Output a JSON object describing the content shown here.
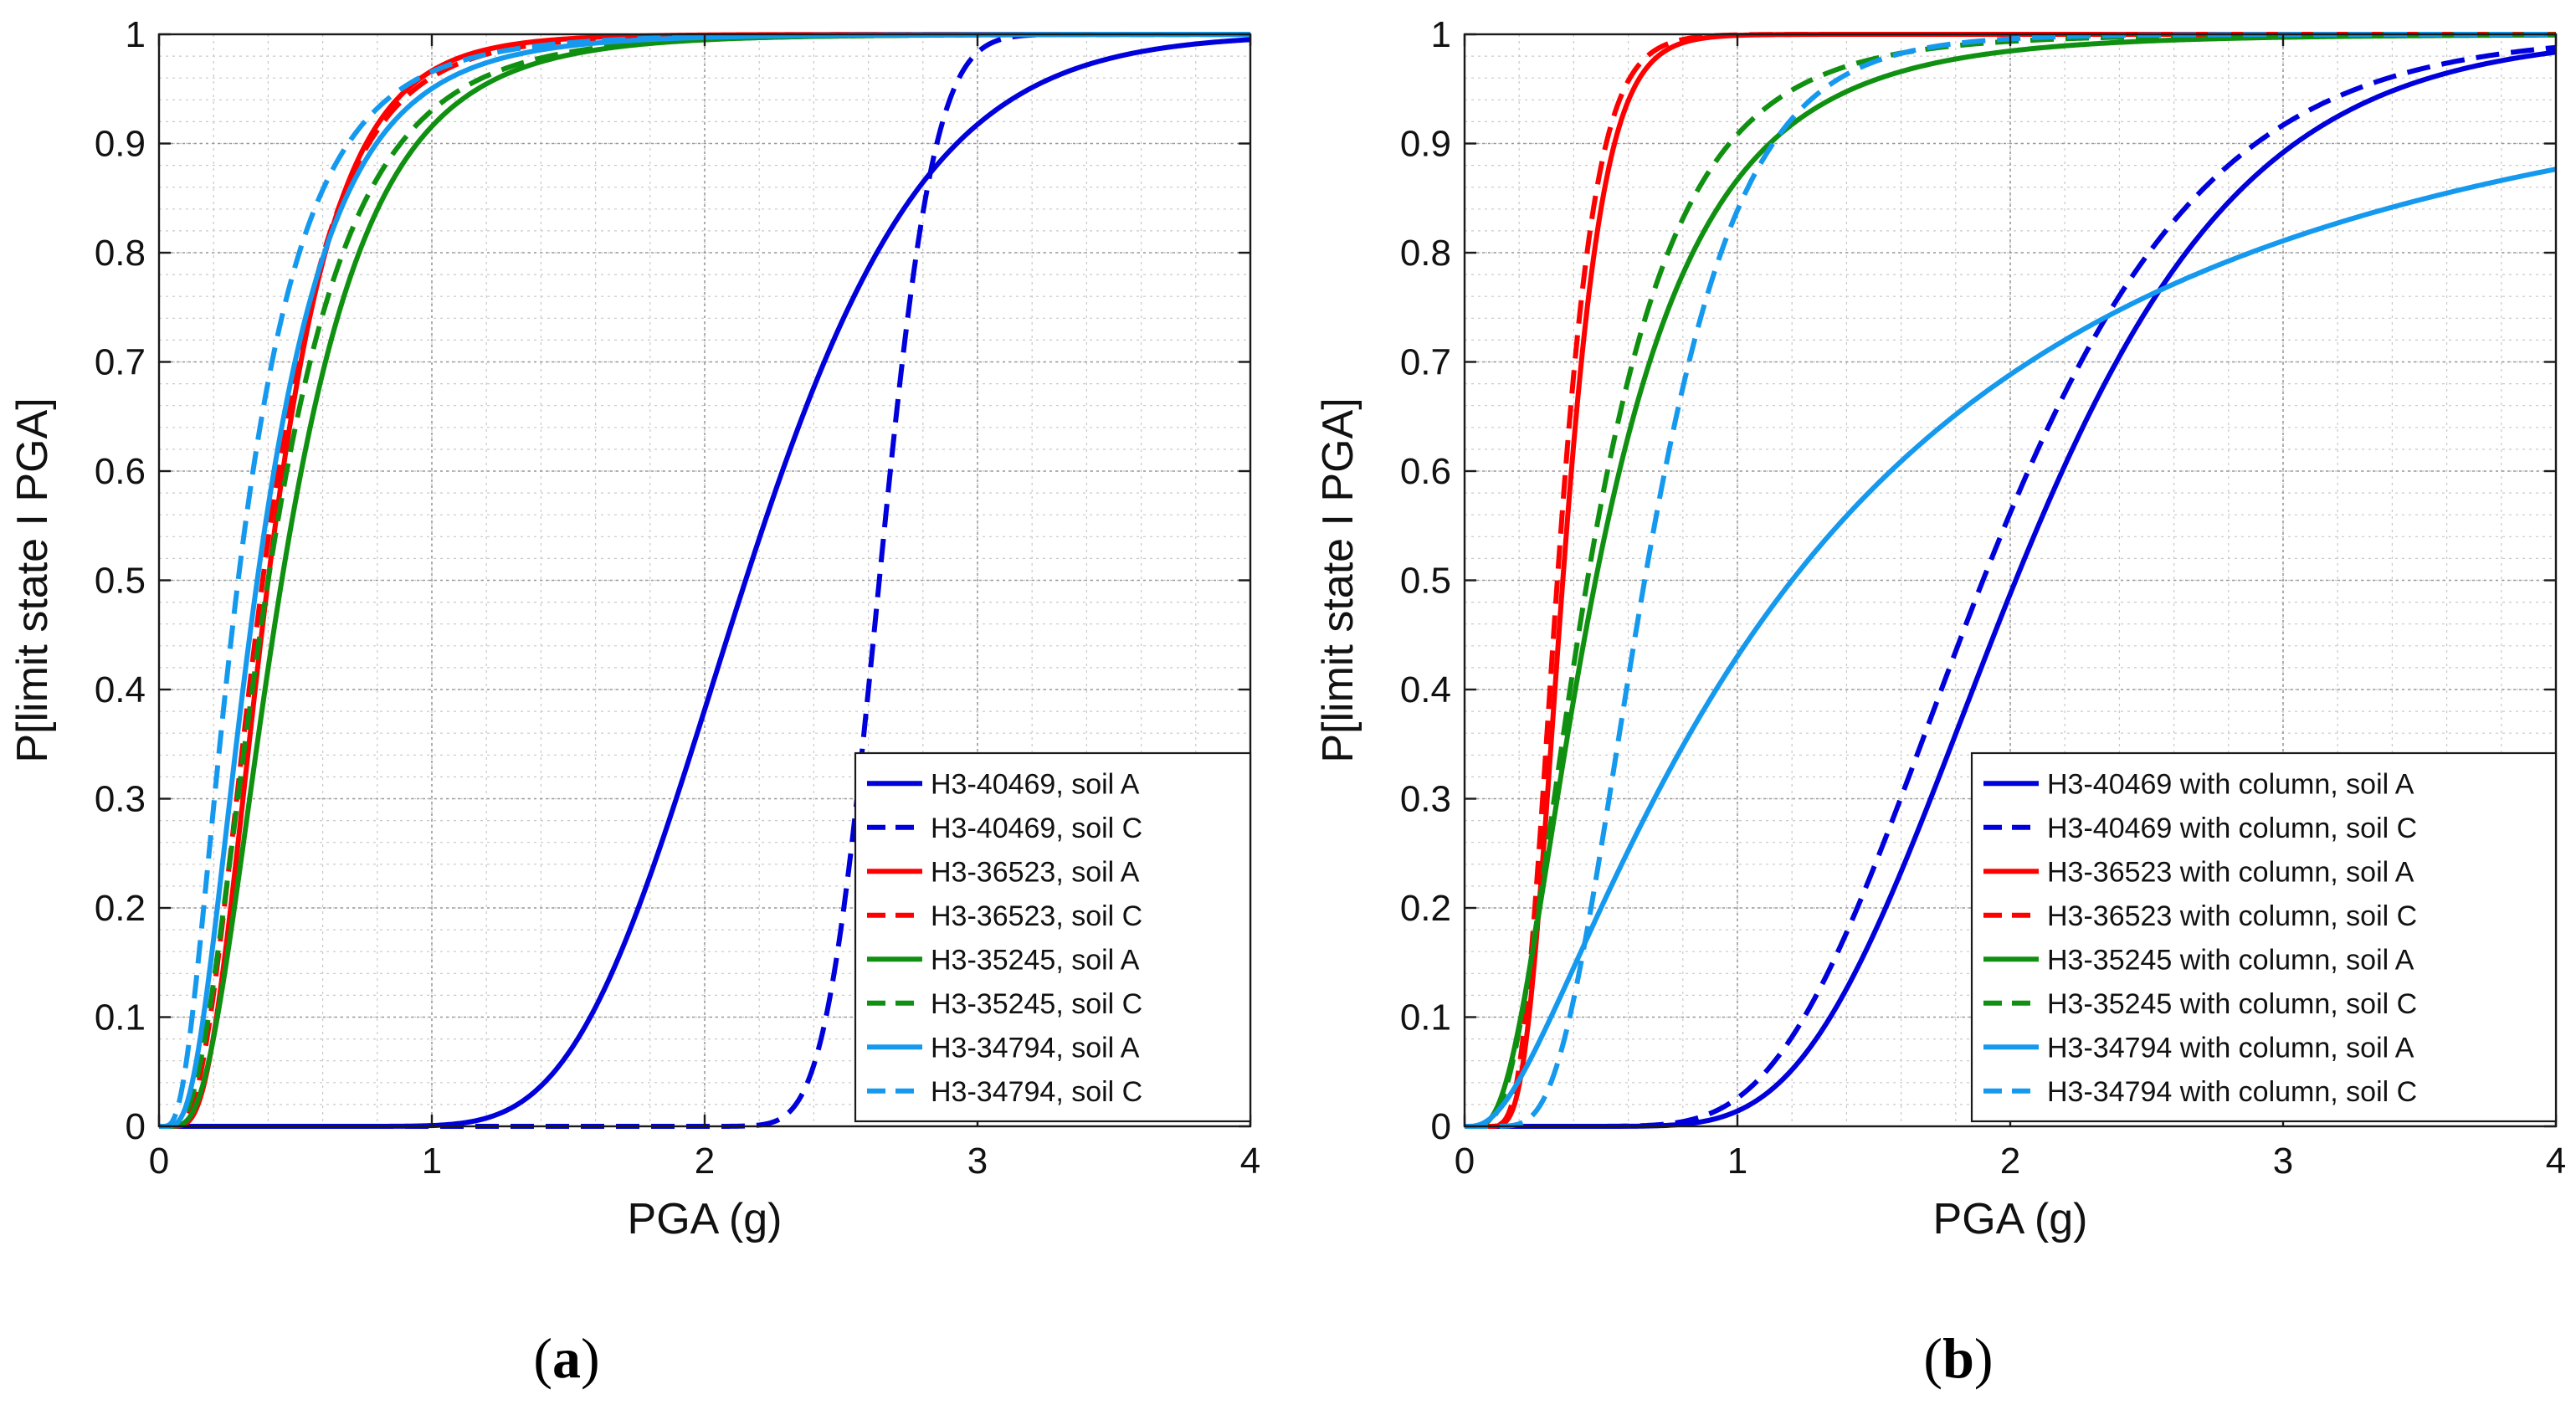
{
  "chart_data": [
    {
      "type": "line",
      "panel": "a",
      "caption_prefix": "(",
      "caption_letter": "a",
      "caption_suffix": ")",
      "xlabel": "PGA (g)",
      "ylabel": "P[limit state I PGA]",
      "xlim": [
        0,
        4
      ],
      "ylim": [
        0,
        1
      ],
      "xticks": [
        0,
        1,
        2,
        3,
        4
      ],
      "yticks": [
        0,
        0.1,
        0.2,
        0.3,
        0.4,
        0.5,
        0.6,
        0.7,
        0.8,
        0.9,
        1
      ],
      "grid": "major-and-minor",
      "legend_position": "bottom-right",
      "series": [
        {
          "name": "H3-40469, soil A",
          "color": "#0000dd",
          "dash": "solid",
          "median": 2.15,
          "beta": 0.24
        },
        {
          "name": "H3-40469, soil C",
          "color": "#0000dd",
          "dash": "dashed",
          "median": 2.64,
          "beta": 0.06
        },
        {
          "name": "H3-36523, soil A",
          "color": "#ff0000",
          "dash": "solid",
          "median": 0.4,
          "beta": 0.5
        },
        {
          "name": "H3-36523, soil C",
          "color": "#ff0000",
          "dash": "dashed",
          "median": 0.38,
          "beta": 0.55
        },
        {
          "name": "H3-35245, soil A",
          "color": "#109010",
          "dash": "solid",
          "median": 0.45,
          "beta": 0.58
        },
        {
          "name": "H3-35245, soil C",
          "color": "#109010",
          "dash": "dashed",
          "median": 0.4,
          "beta": 0.62
        },
        {
          "name": "H3-34794, soil A",
          "color": "#1599ee",
          "dash": "solid",
          "median": 0.36,
          "beta": 0.62
        },
        {
          "name": "H3-34794, soil C",
          "color": "#1599ee",
          "dash": "dashed",
          "median": 0.29,
          "beta": 0.68
        }
      ]
    },
    {
      "type": "line",
      "panel": "b",
      "caption_prefix": "(",
      "caption_letter": "b",
      "caption_suffix": ")",
      "xlabel": "PGA (g)",
      "ylabel": "P[limit state I PGA]",
      "xlim": [
        0,
        4
      ],
      "ylim": [
        0,
        1
      ],
      "xticks": [
        0,
        1,
        2,
        3,
        4
      ],
      "yticks": [
        0,
        0.1,
        0.2,
        0.3,
        0.4,
        0.5,
        0.6,
        0.7,
        0.8,
        0.9,
        1
      ],
      "grid": "major-and-minor",
      "legend_position": "bottom-right",
      "series": [
        {
          "name": "H3-40469 with column, soil A",
          "color": "#0000dd",
          "dash": "solid",
          "median": 2.02,
          "beta": 0.32
        },
        {
          "name": "H3-40469 with column, soil C",
          "color": "#0000dd",
          "dash": "dashed",
          "median": 1.9,
          "beta": 0.33
        },
        {
          "name": "H3-36523 with column, soil A",
          "color": "#ff0000",
          "dash": "solid",
          "median": 0.36,
          "beta": 0.33
        },
        {
          "name": "H3-36523 with column, soil C",
          "color": "#ff0000",
          "dash": "dashed",
          "median": 0.34,
          "beta": 0.33
        },
        {
          "name": "H3-35245 with column, soil A",
          "color": "#109010",
          "dash": "solid",
          "median": 0.48,
          "beta": 0.66
        },
        {
          "name": "H3-35245 with column, soil C",
          "color": "#109010",
          "dash": "dashed",
          "median": 0.45,
          "beta": 0.6
        },
        {
          "name": "H3-34794 with column, soil A",
          "color": "#1599ee",
          "dash": "solid",
          "median": 1.2,
          "beta": 1.04
        },
        {
          "name": "H3-34794 with column, soil C",
          "color": "#1599ee",
          "dash": "dashed",
          "median": 0.66,
          "beta": 0.42
        }
      ]
    }
  ]
}
